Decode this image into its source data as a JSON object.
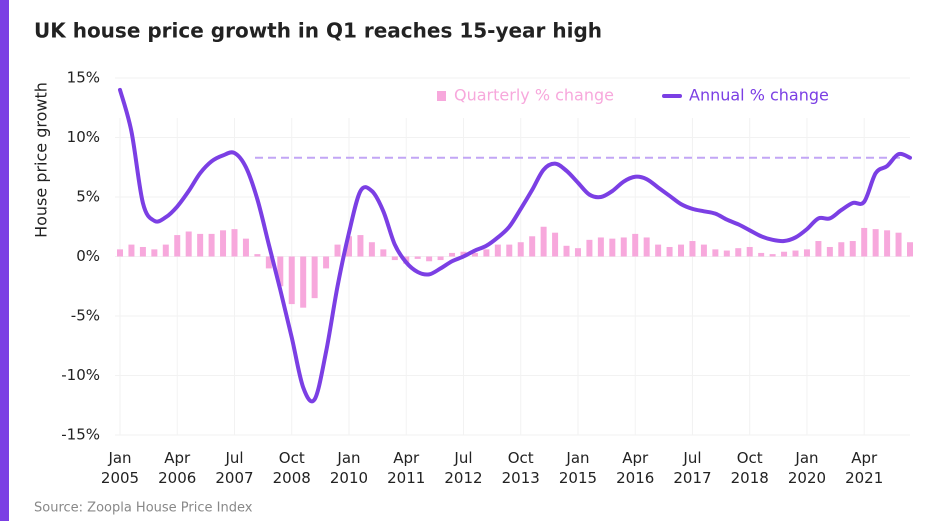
{
  "chart_data": {
    "type": "bar_line",
    "title": "UK house price growth in Q1 reaches 15-year high",
    "y_label": "House price growth",
    "source": "Source: Zoopla House Price Index",
    "categories": [
      "Jan 2005",
      null,
      null,
      null,
      null,
      "Apr 2006",
      null,
      null,
      null,
      null,
      "Jul 2007",
      null,
      null,
      null,
      null,
      "Oct 2008",
      null,
      null,
      null,
      null,
      "Jan 2010",
      null,
      null,
      null,
      null,
      "Apr 2011",
      null,
      null,
      null,
      null,
      "Jul 2012",
      null,
      null,
      null,
      null,
      "Oct 2013",
      null,
      null,
      null,
      null,
      "Jan 2015",
      null,
      null,
      null,
      null,
      "Apr 2016",
      null,
      null,
      null,
      null,
      "Jul 2017",
      null,
      null,
      null,
      null,
      "Oct 2018",
      null,
      null,
      null,
      null,
      "Jan 2020",
      null,
      null,
      null,
      null,
      "Apr 2021",
      null,
      null,
      null,
      null
    ],
    "series": [
      {
        "name": "Quarterly % change",
        "kind": "bar",
        "color": "#f7a8dc",
        "values": [
          0.6,
          1,
          0.8,
          0.6,
          1,
          1.8,
          2.1,
          1.9,
          1.9,
          2.2,
          2.3,
          1.5,
          0.2,
          -1,
          -2.5,
          -4,
          -4.3,
          -3.5,
          -1,
          1,
          1.7,
          1.8,
          1.2,
          0.6,
          -0.3,
          -0.6,
          -0.2,
          -0.4,
          -0.3,
          0.3,
          0.4,
          0.3,
          0.6,
          1,
          1,
          1.2,
          1.7,
          2.5,
          2,
          0.9,
          0.7,
          1.4,
          1.6,
          1.5,
          1.6,
          1.9,
          1.6,
          1,
          0.8,
          1,
          1.3,
          1,
          0.6,
          0.5,
          0.7,
          0.8,
          0.3,
          0.2,
          0.4,
          0.5,
          0.6,
          1.3,
          0.8,
          1.2,
          1.3,
          2.4,
          2.3,
          2.2,
          2,
          1.2
        ]
      },
      {
        "name": "Annual % change",
        "kind": "line",
        "color": "#7b3fe4",
        "values": [
          14,
          10.5,
          4.5,
          3,
          3.3,
          4.2,
          5.5,
          7,
          8,
          8.5,
          8.7,
          7.5,
          4.8,
          1,
          -2.8,
          -6.8,
          -11,
          -12,
          -8,
          -2.5,
          2,
          5.5,
          5.5,
          3.8,
          1,
          -0.5,
          -1.3,
          -1.5,
          -1,
          -0.4,
          0,
          0.5,
          0.9,
          1.6,
          2.5,
          4,
          5.6,
          7.3,
          7.8,
          7.2,
          6.2,
          5.2,
          5,
          5.5,
          6.3,
          6.7,
          6.5,
          5.8,
          5.1,
          4.4,
          4,
          3.8,
          3.6,
          3.1,
          2.7,
          2.2,
          1.7,
          1.4,
          1.3,
          1.6,
          2.3,
          3.2,
          3.2,
          3.9,
          4.5,
          4.6,
          7,
          7.6,
          8.6,
          8.3
        ]
      }
    ],
    "reference_line": 8.3,
    "reference_color": "#c2a6f5",
    "ylim": [
      -15,
      15
    ],
    "yticks": [
      {
        "value": 15,
        "label": "15%"
      },
      {
        "value": 10,
        "label": "10%"
      },
      {
        "value": 5,
        "label": "5%"
      },
      {
        "value": 0,
        "label": "0%"
      },
      {
        "value": -5,
        "label": "-5%"
      },
      {
        "value": -10,
        "label": "-10%"
      },
      {
        "value": -15,
        "label": "-15%"
      }
    ],
    "grid": true,
    "legend": "top-right"
  }
}
